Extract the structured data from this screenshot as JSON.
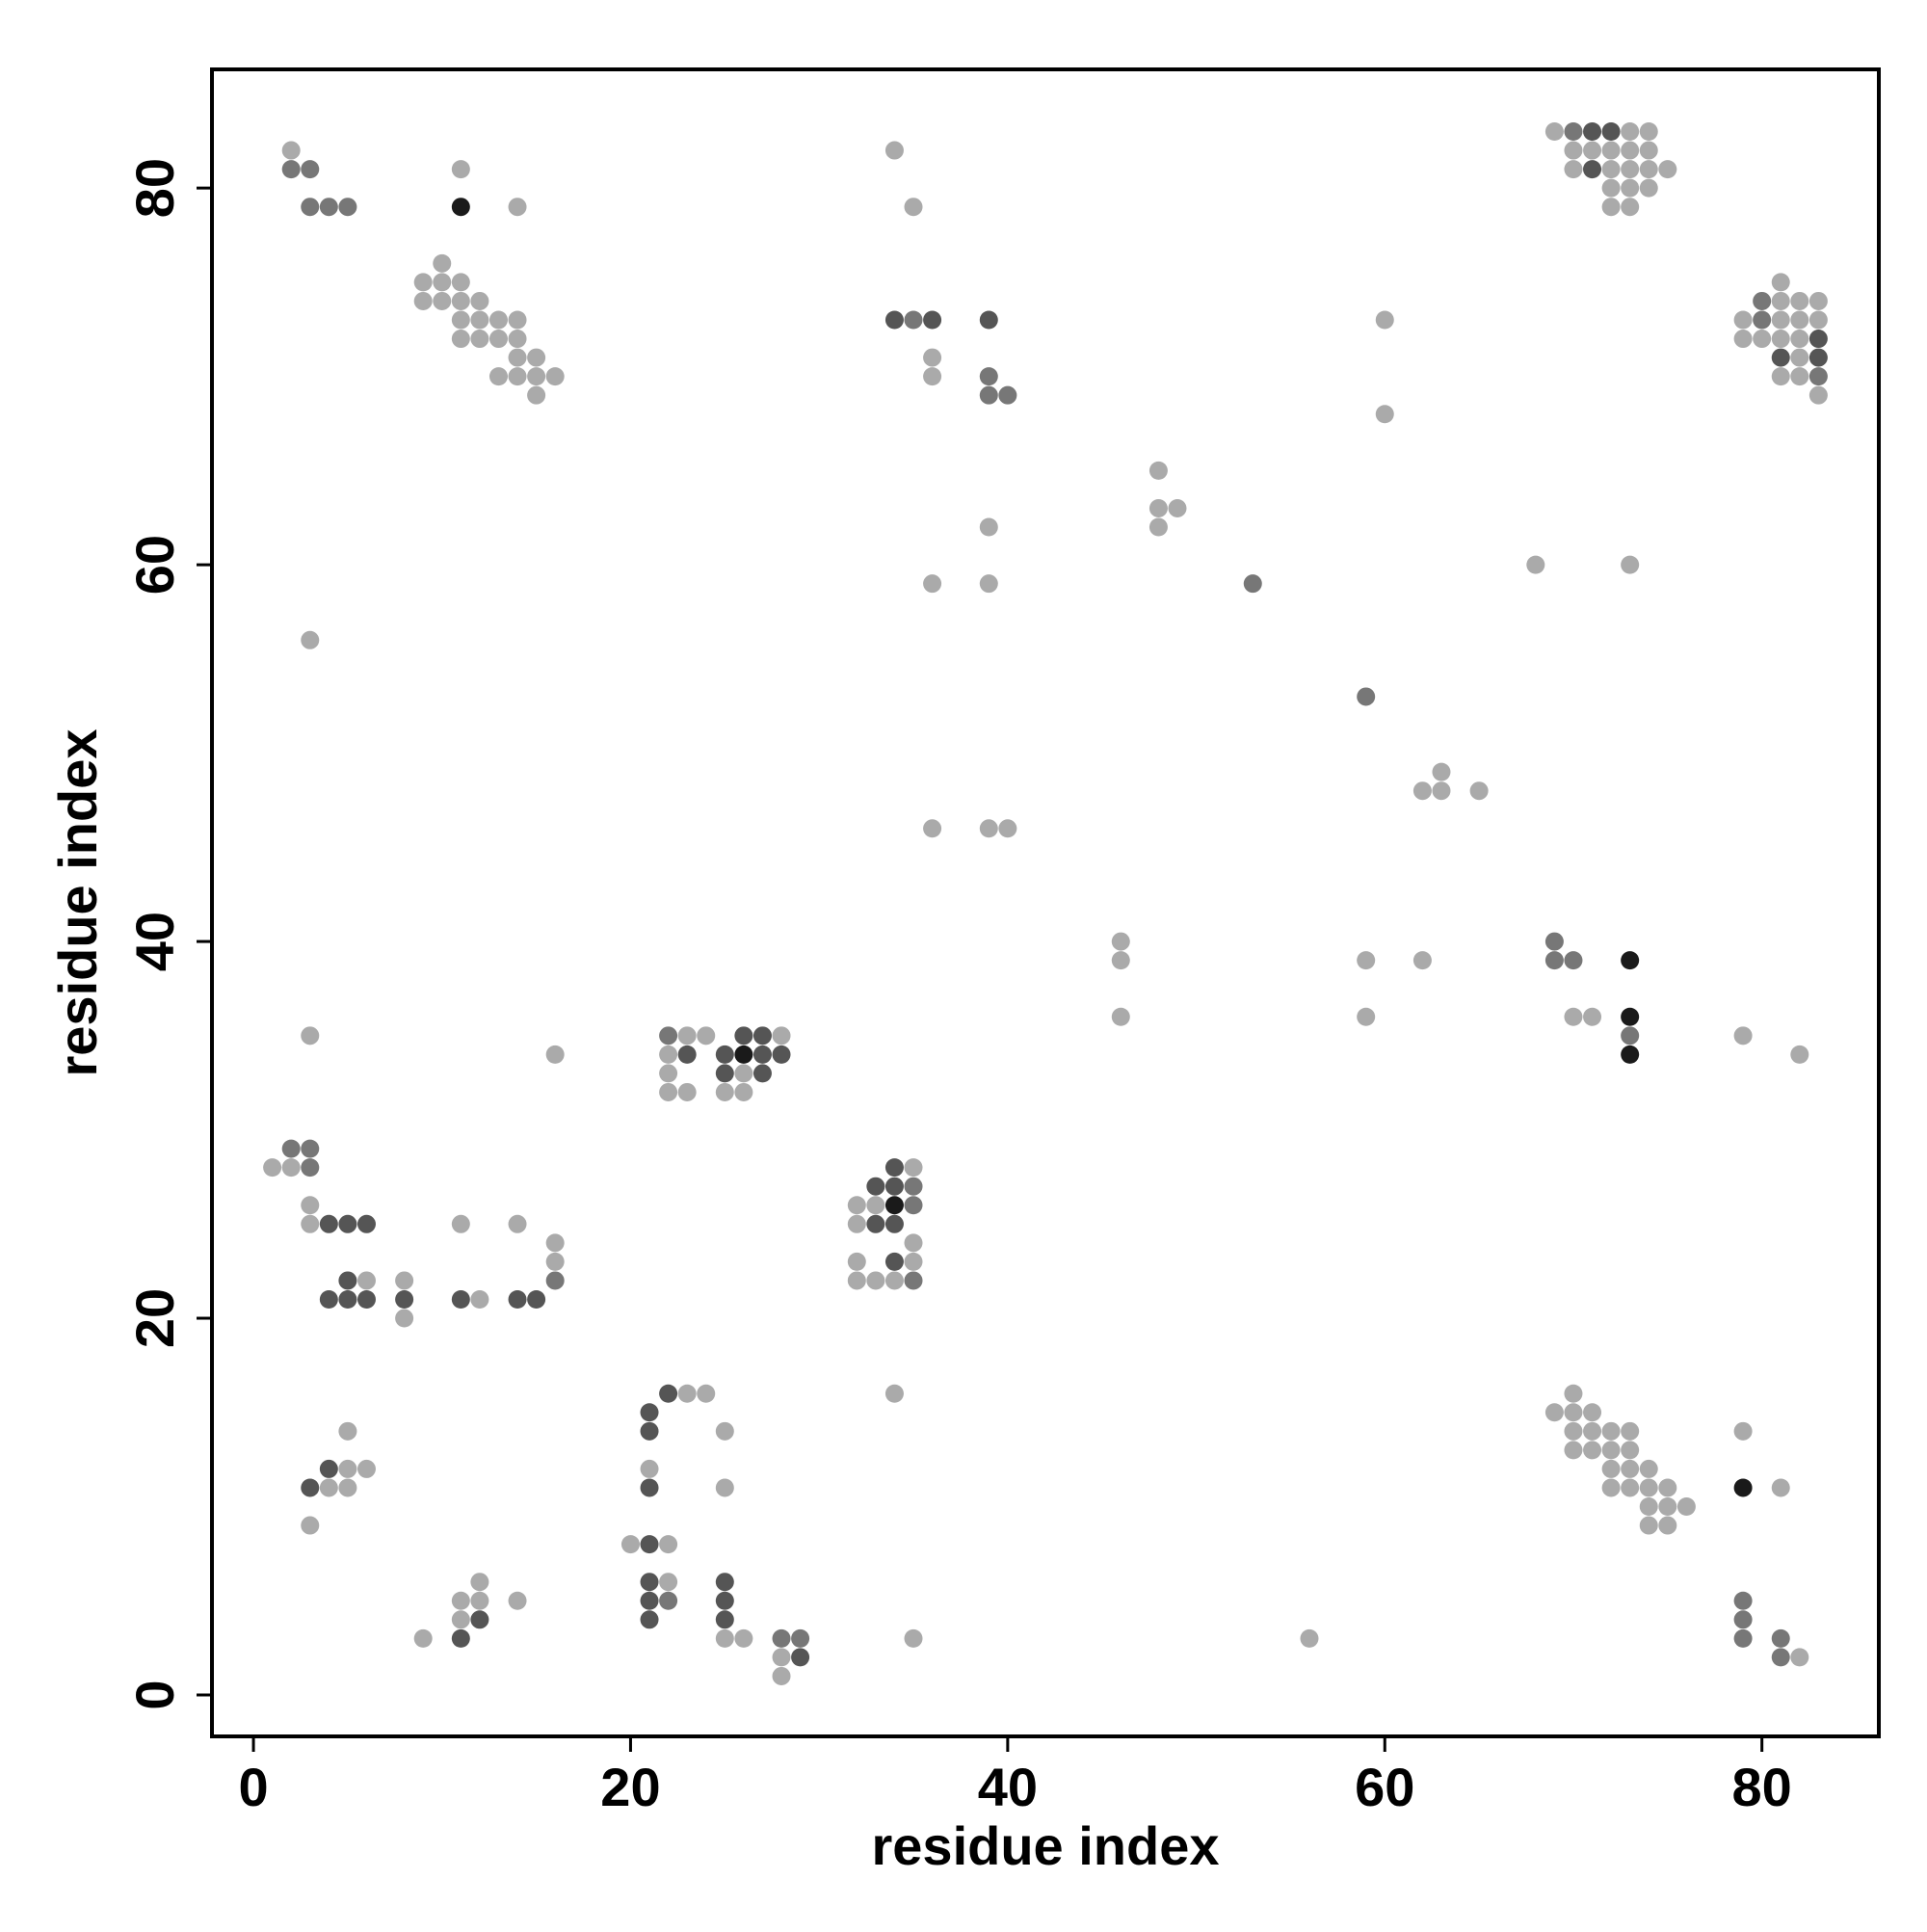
{
  "chart_data": {
    "type": "scatter",
    "x_label": "residue index",
    "y_label": "residue index",
    "xlim": [
      -2.2,
      86.2
    ],
    "ylim": [
      -2.2,
      86.3
    ],
    "xticks": [
      0,
      20,
      40,
      60,
      80
    ],
    "yticks": [
      0,
      20,
      40,
      60,
      80
    ],
    "series": [
      {
        "color": "#aaaaaa",
        "x": [
          2,
          11,
          14,
          10,
          9,
          10,
          11,
          9,
          10,
          11,
          12,
          11,
          12,
          13,
          14,
          11,
          12,
          13,
          14,
          14,
          15,
          13,
          14,
          15,
          16,
          15,
          34,
          35,
          36,
          36,
          39,
          36,
          39,
          36,
          39,
          40,
          3,
          48,
          48,
          49,
          48,
          60,
          60,
          63,
          62,
          63,
          65,
          68,
          73,
          69,
          73,
          74,
          70,
          71,
          72,
          73,
          74,
          70,
          72,
          73,
          74,
          75,
          72,
          73,
          74,
          72,
          73,
          81,
          81,
          82,
          83,
          79,
          81,
          82,
          83,
          79,
          80,
          81,
          82,
          82,
          81,
          82,
          83,
          46,
          46,
          46,
          59,
          59,
          62,
          70,
          71,
          79,
          82,
          3,
          16,
          23,
          24,
          28,
          22,
          22,
          26,
          22,
          23,
          25,
          26,
          1,
          2,
          3,
          3,
          11,
          14,
          16,
          16,
          6,
          8,
          12,
          8,
          35,
          32,
          33,
          32,
          35,
          32,
          35,
          32,
          33,
          34,
          34,
          23,
          24,
          25,
          5,
          5,
          6,
          21,
          4,
          5,
          25,
          3,
          20,
          22,
          22,
          12,
          11,
          12,
          14,
          11,
          9,
          25,
          26,
          35,
          56,
          28,
          28,
          70,
          69,
          70,
          71,
          70,
          71,
          72,
          73,
          79,
          70,
          71,
          72,
          73,
          72,
          73,
          74,
          72,
          73,
          74,
          75,
          81,
          74,
          75,
          76,
          74,
          75,
          82
        ],
        "values": [
          82,
          81,
          79,
          76,
          75,
          75,
          75,
          74,
          74,
          74,
          74,
          73,
          73,
          73,
          73,
          72,
          72,
          72,
          72,
          71,
          71,
          70,
          70,
          70,
          70,
          69,
          82,
          79,
          71,
          70,
          62,
          59,
          59,
          46,
          46,
          46,
          56,
          65,
          63,
          63,
          62,
          73,
          68,
          49,
          48,
          48,
          48,
          60,
          60,
          83,
          83,
          83,
          82,
          82,
          82,
          82,
          82,
          81,
          81,
          81,
          81,
          81,
          80,
          80,
          80,
          79,
          79,
          75,
          74,
          74,
          74,
          73,
          73,
          73,
          73,
          72,
          72,
          72,
          72,
          71,
          70,
          70,
          69,
          40,
          39,
          36,
          39,
          36,
          39,
          36,
          36,
          35,
          34,
          35,
          34,
          35,
          35,
          35,
          34,
          33,
          33,
          32,
          32,
          32,
          32,
          28,
          28,
          26,
          25,
          25,
          25,
          24,
          23,
          22,
          22,
          21,
          20,
          28,
          26,
          26,
          25,
          24,
          23,
          23,
          22,
          22,
          22,
          16,
          16,
          16,
          14,
          14,
          12,
          12,
          12,
          11,
          11,
          11,
          9,
          8,
          8,
          6,
          6,
          5,
          5,
          5,
          4,
          3,
          3,
          3,
          3,
          3,
          2,
          1,
          16,
          15,
          15,
          15,
          14,
          14,
          14,
          14,
          14,
          13,
          13,
          13,
          13,
          12,
          12,
          12,
          11,
          11,
          11,
          11,
          11,
          10,
          10,
          10,
          9,
          9,
          2
        ]
      },
      {
        "color": "#777777",
        "x": [
          2,
          3,
          3,
          4,
          5,
          35,
          39,
          39,
          40,
          53,
          59,
          70,
          80,
          80,
          83,
          69,
          69,
          70,
          73,
          22,
          2,
          3,
          3,
          16,
          35,
          35,
          35,
          22,
          28,
          29,
          79,
          79,
          79,
          81,
          81
        ],
        "values": [
          81,
          81,
          79,
          79,
          79,
          73,
          70,
          69,
          69,
          59,
          53,
          83,
          74,
          73,
          70,
          40,
          39,
          39,
          35,
          35,
          29,
          29,
          28,
          22,
          27,
          26,
          22,
          5,
          3,
          3,
          5,
          4,
          3,
          3,
          2
        ]
      },
      {
        "color": "#555555",
        "x": [
          34,
          36,
          39,
          71,
          72,
          71,
          83,
          81,
          83,
          26,
          27,
          23,
          25,
          27,
          28,
          25,
          27,
          4,
          5,
          6,
          5,
          4,
          5,
          6,
          8,
          11,
          14,
          15,
          34,
          33,
          34,
          33,
          34,
          34,
          22,
          21,
          21,
          4,
          3,
          21,
          21,
          21,
          25,
          21,
          25,
          21,
          25,
          12,
          11,
          29
        ],
        "values": [
          73,
          73,
          73,
          83,
          83,
          81,
          72,
          71,
          71,
          35,
          35,
          34,
          34,
          34,
          34,
          33,
          33,
          25,
          25,
          25,
          22,
          21,
          21,
          21,
          21,
          21,
          21,
          21,
          28,
          27,
          27,
          25,
          25,
          23,
          16,
          15,
          14,
          12,
          11,
          11,
          8,
          6,
          6,
          5,
          5,
          4,
          4,
          4,
          3,
          2
        ]
      },
      {
        "color": "#1a1a1a",
        "x": [
          11,
          73,
          73,
          73,
          26,
          34,
          79
        ],
        "values": [
          79,
          39,
          36,
          34,
          34,
          26,
          11
        ]
      }
    ]
  }
}
